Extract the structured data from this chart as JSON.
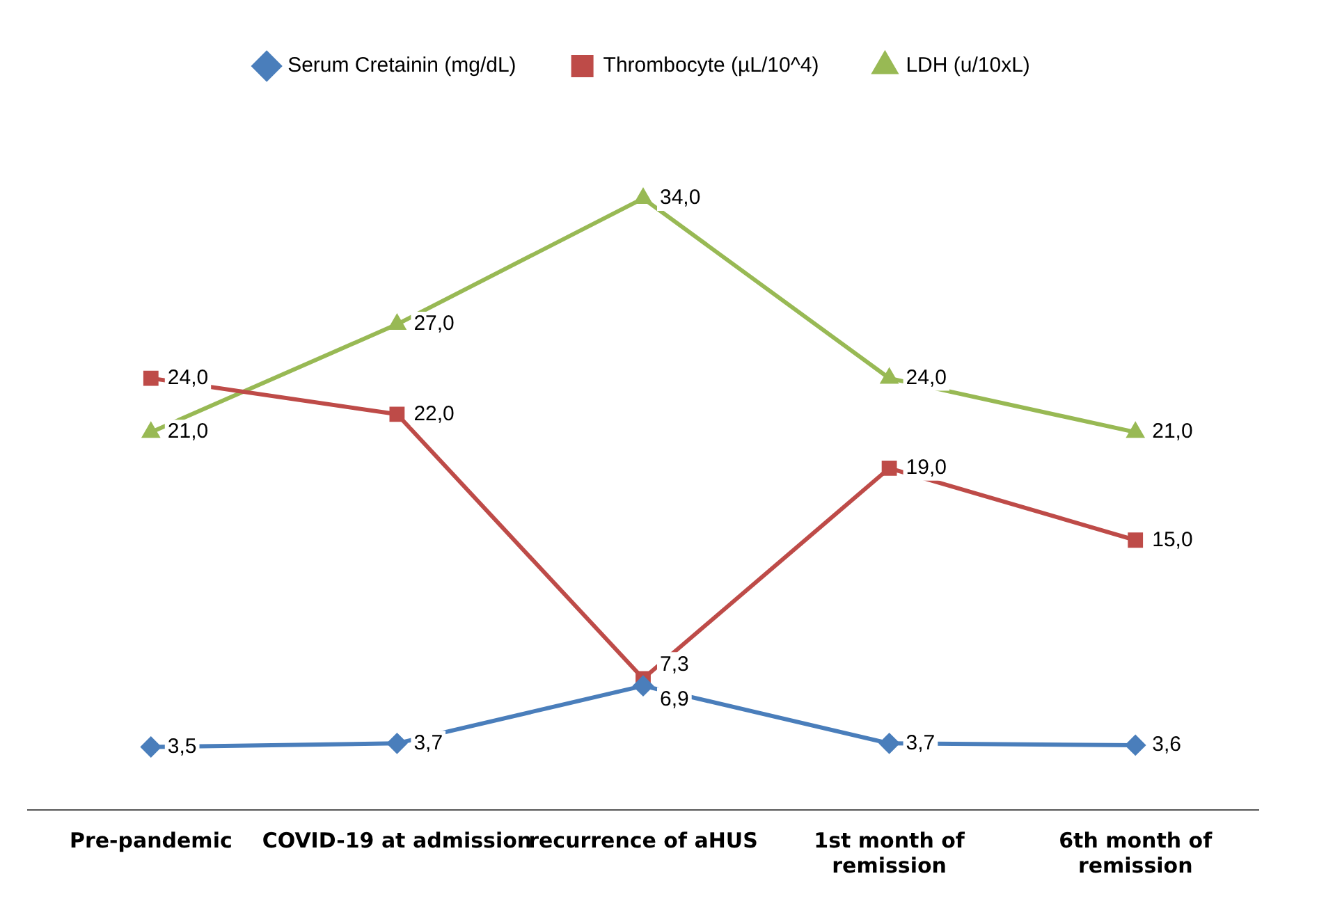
{
  "chart_data": {
    "type": "line",
    "categories": [
      "Pre-pandemic",
      "COVID-19 at admission",
      "recurrence of aHUS",
      "1st month of remission",
      "6th month of remission"
    ],
    "series": [
      {
        "name": "Serum Cretainin (mg/dL)",
        "color": "#4a7ebb",
        "marker": "diamond",
        "values": [
          3.5,
          3.7,
          6.9,
          3.7,
          3.6
        ],
        "value_labels": [
          "3,5",
          "3,7",
          "6,9",
          "3,7",
          "3,6"
        ]
      },
      {
        "name": "Thrombocyte (µL/10^4)",
        "color": "#be4b48",
        "marker": "square",
        "values": [
          24,
          22,
          7.3,
          19,
          15
        ],
        "value_labels": [
          "24,0",
          "22,0",
          "7,3",
          "19,0",
          "15,0"
        ]
      },
      {
        "name": "LDH (u/10xL)",
        "color": "#98b954",
        "marker": "triangle",
        "values": [
          21,
          27,
          34,
          24,
          21
        ],
        "value_labels": [
          "21,0",
          "27,0",
          "34,0",
          "24,0",
          "21,0"
        ]
      }
    ],
    "legend": "top",
    "grid": false,
    "tick_labels": "x",
    "line_style": "solid"
  }
}
